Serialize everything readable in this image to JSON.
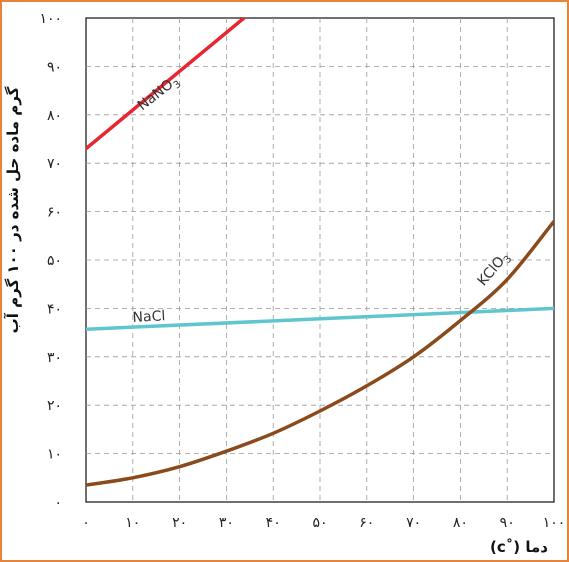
{
  "chart_data": {
    "type": "line",
    "title": "",
    "xlabel": "(c˚) دما",
    "ylabel": "گرم ماده حل شده در ۱۰۰ گرم آب",
    "xlim": [
      0,
      100
    ],
    "ylim": [
      0,
      100
    ],
    "x_tick_labels": [
      "۰",
      "۱۰",
      "۲۰",
      "۳۰",
      "۴۰",
      "۵۰",
      "۶۰",
      "۷۰",
      "۸۰",
      "۹۰",
      "۱۰۰"
    ],
    "y_tick_labels": [
      "۰",
      "۱۰",
      "۲۰",
      "۳۰",
      "۴۰",
      "۵۰",
      "۶۰",
      "۷۰",
      "۸۰",
      "۹۰",
      "۱۰۰"
    ],
    "grid": true,
    "series": [
      {
        "name": "NaNO3",
        "color": "#e8262f",
        "x": [
          0,
          35
        ],
        "y": [
          73,
          101
        ]
      },
      {
        "name": "NaCl",
        "color": "#5fc6cf",
        "x": [
          0,
          100
        ],
        "y": [
          35.7,
          40
        ]
      },
      {
        "name": "KClO3",
        "color": "#8b4a1c",
        "x": [
          0,
          10,
          20,
          30,
          40,
          50,
          60,
          70,
          80,
          90,
          100
        ],
        "y": [
          3.5,
          5,
          7.3,
          10.5,
          14.2,
          18.8,
          24,
          30,
          37.5,
          46,
          58
        ]
      }
    ],
    "series_labels": [
      {
        "series": "NaNO3",
        "text_main": "NaNO",
        "text_sub": "3"
      },
      {
        "series": "NaCl",
        "text_main": "NaCl",
        "text_sub": ""
      },
      {
        "series": "KClO3",
        "text_main": "KClO",
        "text_sub": "3"
      }
    ]
  }
}
